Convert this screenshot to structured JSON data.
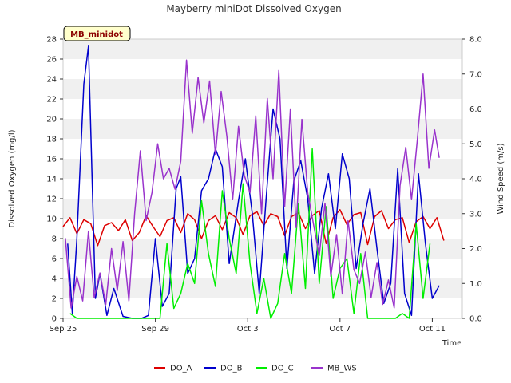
{
  "chart_data": {
    "type": "line",
    "title": "Mayberry miniDot Dissolved Oxygen",
    "badge": "MB_minidot",
    "xlabel": "Time",
    "ylabel": "Dissolved Oxygen (mg/l)",
    "y2label": "Wind Speed (m/s)",
    "ylim": [
      0,
      28
    ],
    "y2lim": [
      0,
      8
    ],
    "x_ticks": [
      "Sep 25",
      "Sep 29",
      "Oct 3",
      "Oct 7",
      "Oct 11"
    ],
    "y_ticks": [
      "0",
      "2",
      "4",
      "6",
      "8",
      "10",
      "12",
      "14",
      "16",
      "18",
      "20",
      "22",
      "24",
      "26",
      "28"
    ],
    "y2_ticks": [
      "0.0",
      "1.0",
      "2.0",
      "3.0",
      "4.0",
      "5.0",
      "6.0",
      "7.0",
      "8.0"
    ],
    "grid": "horizontal bands",
    "legend_position": "bottom",
    "x_unit": "days since Sep 25",
    "series": [
      {
        "name": "DO_A",
        "color": "#dd0000",
        "axis": "left",
        "x": [
          0,
          0.3,
          0.6,
          0.9,
          1.2,
          1.5,
          1.8,
          2.1,
          2.4,
          2.7,
          3.0,
          3.3,
          3.6,
          3.9,
          4.2,
          4.5,
          4.8,
          5.1,
          5.4,
          5.7,
          6.0,
          6.3,
          6.6,
          6.9,
          7.2,
          7.5,
          7.8,
          8.1,
          8.4,
          8.7,
          9.0,
          9.3,
          9.6,
          9.9,
          10.2,
          10.5,
          10.8,
          11.1,
          11.4,
          11.7,
          12.0,
          12.3,
          12.6,
          12.9,
          13.2,
          13.5,
          13.8,
          14.1,
          14.4,
          14.7,
          15.0,
          15.3,
          15.6,
          15.9,
          16.2,
          16.5
        ],
        "values": [
          9.2,
          10.1,
          8.5,
          9.9,
          9.5,
          7.3,
          9.3,
          9.6,
          8.8,
          9.9,
          7.8,
          8.6,
          10.3,
          9.2,
          8.2,
          9.8,
          10.1,
          8.6,
          10.5,
          9.9,
          8.0,
          9.8,
          10.3,
          8.9,
          10.6,
          10.1,
          8.4,
          10.3,
          10.7,
          9.3,
          10.5,
          10.2,
          8.3,
          10.2,
          10.6,
          9.0,
          10.3,
          10.8,
          7.5,
          10.1,
          10.9,
          9.4,
          10.4,
          10.6,
          7.4,
          10.2,
          10.8,
          9.0,
          9.9,
          10.1,
          7.6,
          9.7,
          10.2,
          9.0,
          10.1,
          7.8
        ]
      },
      {
        "name": "DO_B",
        "color": "#0000cc",
        "axis": "left",
        "x": [
          0.2,
          0.4,
          0.6,
          0.9,
          1.1,
          1.4,
          1.6,
          1.9,
          2.2,
          2.6,
          3.0,
          3.4,
          3.7,
          4.0,
          4.3,
          4.6,
          4.9,
          5.1,
          5.4,
          5.7,
          6.0,
          6.3,
          6.6,
          6.9,
          7.2,
          7.6,
          7.9,
          8.2,
          8.5,
          8.8,
          9.1,
          9.4,
          9.7,
          10.0,
          10.3,
          10.6,
          10.9,
          11.2,
          11.5,
          11.8,
          12.1,
          12.4,
          12.7,
          13.0,
          13.3,
          13.6,
          13.9,
          14.2,
          14.5,
          14.8,
          15.1,
          15.4,
          15.7,
          16.0,
          16.3
        ],
        "values": [
          7.5,
          0.5,
          8.0,
          23.5,
          27.3,
          2.0,
          4.5,
          0.3,
          3.0,
          0.2,
          0.0,
          0.0,
          0.3,
          8.0,
          1.2,
          2.5,
          13.0,
          14.2,
          4.5,
          6.0,
          12.8,
          14.0,
          17.0,
          15.2,
          5.5,
          11.8,
          16.0,
          10.5,
          2.5,
          12.0,
          21.0,
          18.0,
          5.0,
          13.8,
          15.8,
          12.0,
          4.5,
          11.0,
          14.5,
          9.0,
          16.5,
          14.0,
          5.0,
          9.5,
          13.0,
          7.0,
          1.5,
          3.5,
          15.0,
          2.5,
          0.3,
          14.5,
          7.5,
          2.0,
          3.3
        ]
      },
      {
        "name": "DO_C",
        "color": "#00ee00",
        "axis": "left",
        "x": [
          0.3,
          0.6,
          0.9,
          1.2,
          1.5,
          1.8,
          2.1,
          2.5,
          2.9,
          3.3,
          3.6,
          3.9,
          4.2,
          4.5,
          4.8,
          5.1,
          5.4,
          5.7,
          6.0,
          6.3,
          6.6,
          6.9,
          7.2,
          7.5,
          7.8,
          8.1,
          8.4,
          8.7,
          9.0,
          9.3,
          9.6,
          9.9,
          10.2,
          10.5,
          10.8,
          11.1,
          11.4,
          11.7,
          12.0,
          12.3,
          12.6,
          12.9,
          13.2,
          13.5,
          13.8,
          14.1,
          14.4,
          14.7,
          15.0,
          15.3,
          15.6,
          15.9
        ],
        "values": [
          0.5,
          0.0,
          0.0,
          0.0,
          0.0,
          0.0,
          0.0,
          0.0,
          0.0,
          0.0,
          0.0,
          0.0,
          0.0,
          7.5,
          1.0,
          2.5,
          5.5,
          3.5,
          11.8,
          6.5,
          3.2,
          12.8,
          8.0,
          4.5,
          13.5,
          5.5,
          0.5,
          4.0,
          0.0,
          1.5,
          6.5,
          2.5,
          11.5,
          3.0,
          17.0,
          3.5,
          11.2,
          2.0,
          5.0,
          6.0,
          0.5,
          6.5,
          0.0,
          0.0,
          0.0,
          0.0,
          0.0,
          0.5,
          0.0,
          9.5,
          2.0,
          7.5
        ]
      },
      {
        "name": "MB_WS",
        "color": "#9933cc",
        "axis": "right",
        "x": [
          0.1,
          0.35,
          0.6,
          0.85,
          1.1,
          1.35,
          1.6,
          1.85,
          2.1,
          2.35,
          2.6,
          2.85,
          3.1,
          3.35,
          3.6,
          3.85,
          4.1,
          4.35,
          4.6,
          4.85,
          5.1,
          5.35,
          5.6,
          5.85,
          6.1,
          6.35,
          6.6,
          6.85,
          7.1,
          7.35,
          7.6,
          7.85,
          8.1,
          8.35,
          8.6,
          8.85,
          9.1,
          9.35,
          9.6,
          9.85,
          10.1,
          10.35,
          10.6,
          10.85,
          11.1,
          11.35,
          11.6,
          11.85,
          12.1,
          12.35,
          12.6,
          12.85,
          13.1,
          13.35,
          13.6,
          13.85,
          14.1,
          14.35,
          14.6,
          14.85,
          15.1,
          15.35,
          15.6,
          15.85,
          16.1,
          16.3
        ],
        "values": [
          2.3,
          0.3,
          1.2,
          0.5,
          2.5,
          0.6,
          1.3,
          0.4,
          2.0,
          0.8,
          2.2,
          0.5,
          3.0,
          4.8,
          2.8,
          3.6,
          5.0,
          4.0,
          4.3,
          3.7,
          4.5,
          7.4,
          5.3,
          6.9,
          5.6,
          6.8,
          4.7,
          6.5,
          5.2,
          3.4,
          5.5,
          4.1,
          3.6,
          5.8,
          3.0,
          6.3,
          4.0,
          7.1,
          3.2,
          6.0,
          2.6,
          5.7,
          3.6,
          2.7,
          1.8,
          3.3,
          1.2,
          2.4,
          0.7,
          2.8,
          1.4,
          1.0,
          1.9,
          0.6,
          1.6,
          0.4,
          1.1,
          0.3,
          3.8,
          4.9,
          3.4,
          5.1,
          7.0,
          4.3,
          5.4,
          4.6
        ]
      }
    ]
  }
}
